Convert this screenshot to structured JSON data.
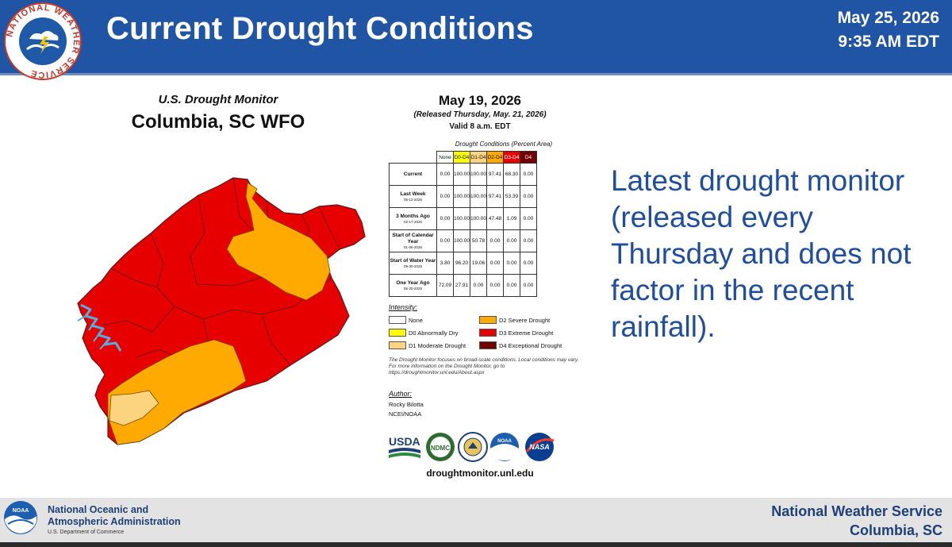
{
  "header": {
    "title": "Current Drought Conditions",
    "date": "May 25, 2026",
    "time": "9:35 AM EDT",
    "logo_ring_text": "NATIONAL WEATHER SERVICE"
  },
  "drought_monitor": {
    "title": "U.S. Drought Monitor",
    "region": "Columbia, SC WFO",
    "map_date": "May 19, 2026",
    "released": "(Released Thursday, May. 21, 2026)",
    "valid": "Valid 8 a.m. EDT",
    "table_caption": "Drought Conditions (Percent Area)",
    "columns": [
      "None",
      "D0-D4",
      "D1-D4",
      "D2-D4",
      "D3-D4",
      "D4"
    ],
    "rows": [
      {
        "label": "Current",
        "date": "",
        "values": [
          "0.00",
          "100.00",
          "100.00",
          "97.41",
          "68.30",
          "0.00"
        ]
      },
      {
        "label": "Last Week",
        "date": "05-12-2026",
        "values": [
          "0.00",
          "100.00",
          "100.00",
          "97.41",
          "53.39",
          "0.00"
        ]
      },
      {
        "label": "3 Months Ago",
        "date": "02-17-2026",
        "values": [
          "0.00",
          "100.00",
          "100.00",
          "47.48",
          "1.09",
          "0.00"
        ]
      },
      {
        "label": "Start of Calendar Year",
        "date": "01-06-2026",
        "values": [
          "0.00",
          "100.00",
          "50.78",
          "0.00",
          "0.00",
          "0.00"
        ]
      },
      {
        "label": "Start of Water Year",
        "date": "09-30-2025",
        "values": [
          "3.80",
          "96.20",
          "19.06",
          "0.00",
          "0.00",
          "0.00"
        ]
      },
      {
        "label": "One Year Ago",
        "date": "05-20-2025",
        "values": [
          "72.09",
          "27.91",
          "0.00",
          "0.00",
          "0.00",
          "0.00"
        ]
      }
    ],
    "legend_title": "Intensity:",
    "legend": [
      {
        "label": "None",
        "color": "#ffffff"
      },
      {
        "label": "D0 Abnormally Dry",
        "color": "#ffff00"
      },
      {
        "label": "D1 Moderate Drought",
        "color": "#fcd37f"
      },
      {
        "label": "D2 Severe Drought",
        "color": "#ffaa00"
      },
      {
        "label": "D3 Extreme Drought",
        "color": "#e60000"
      },
      {
        "label": "D4 Exceptional Drought",
        "color": "#730000"
      }
    ],
    "note": "The Drought Monitor focuses on broad-scale conditions. Local conditions may vary. For more information on the Drought Monitor, go to https://droughtmonitor.unl.edu/About.aspx",
    "author_label": "Author:",
    "author_name": "Rocky Bilotta",
    "author_org": "NCEI/NOAA",
    "logos": [
      "USDA",
      "NDMC",
      "NOAA",
      "NASA"
    ],
    "url": "droughtmonitor.unl.edu"
  },
  "side_text": "Latest drought monitor (released every Thursday and does not factor in the recent rainfall).",
  "footer": {
    "noaa_name_line1": "National Oceanic and",
    "noaa_name_line2": "Atmospheric Administration",
    "noaa_dept": "U.S. Department of Commerce",
    "noaa_logo_text": "NOAA",
    "nws_line1": "National Weather Service",
    "nws_line2": "Columbia, SC"
  },
  "colors": {
    "header_blue": "#2054a4",
    "text_blue": "#1f4ea0",
    "d1": "#fcd37f",
    "d2": "#ffaa00",
    "d3": "#e60000",
    "water": "#56aee0"
  }
}
